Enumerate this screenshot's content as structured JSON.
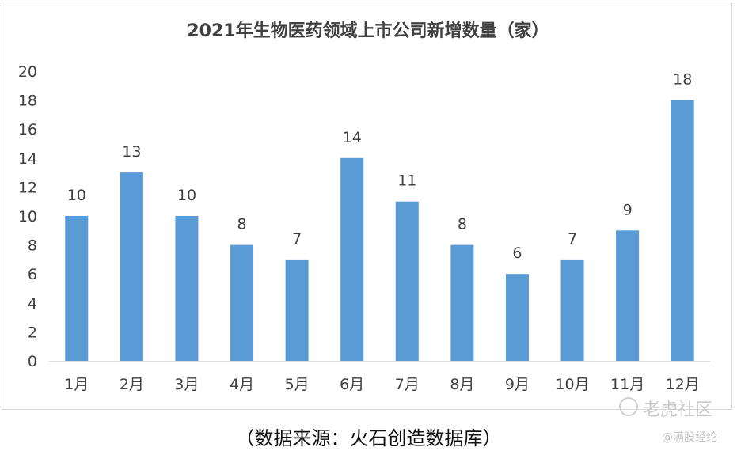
{
  "chart_data": {
    "type": "bar",
    "title": "2021年生物医药领域上市公司新增数量（家）",
    "categories": [
      "1月",
      "2月",
      "3月",
      "4月",
      "5月",
      "6月",
      "7月",
      "8月",
      "9月",
      "10月",
      "11月",
      "12月"
    ],
    "values": [
      10,
      13,
      10,
      8,
      7,
      14,
      11,
      8,
      6,
      7,
      9,
      18
    ],
    "ylim": [
      0,
      20
    ],
    "yticks": [
      0,
      2,
      4,
      6,
      8,
      10,
      12,
      14,
      16,
      18,
      20
    ],
    "bar_color": "#5b9bd5",
    "grid": false,
    "data_labels": true
  },
  "source": "（数据来源：火石创造数据库）",
  "watermark": {
    "main": "老虎社区",
    "sub": "@满股经纶"
  }
}
